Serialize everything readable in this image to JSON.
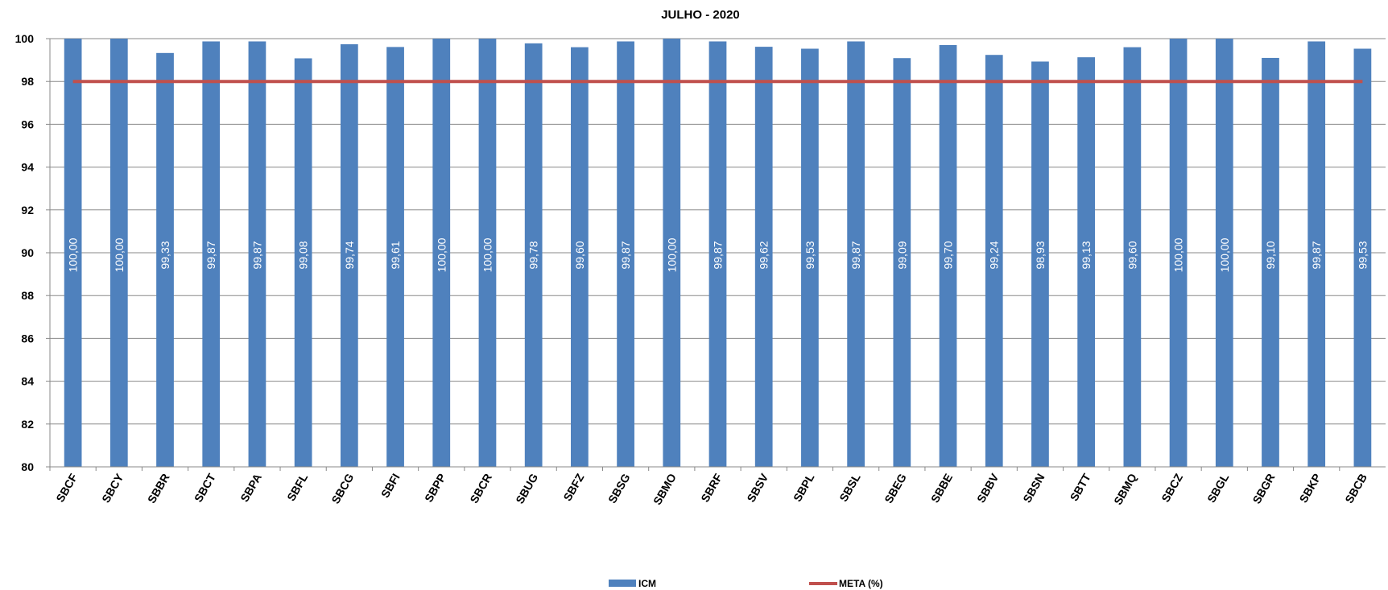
{
  "chart_data": {
    "type": "bar",
    "title": "JULHO - 2020",
    "xlabel": "",
    "ylabel": "",
    "ylim": [
      80,
      100
    ],
    "yticks": [
      80,
      82,
      84,
      86,
      88,
      90,
      92,
      94,
      96,
      98,
      100
    ],
    "grid": true,
    "legend_position": "bottom",
    "categories": [
      "SBCF",
      "SBCY",
      "SBBR",
      "SBCT",
      "SBPA",
      "SBFL",
      "SBCG",
      "SBFI",
      "SBPP",
      "SBCR",
      "SBUG",
      "SBFZ",
      "SBSG",
      "SBMO",
      "SBRF",
      "SBSV",
      "SBPL",
      "SBSL",
      "SBEG",
      "SBBE",
      "SBBV",
      "SBSN",
      "SBTT",
      "SBMQ",
      "SBCZ",
      "SBGL",
      "SBGR",
      "SBKP",
      "SBCB"
    ],
    "series": [
      {
        "name": "ICM",
        "type": "bar",
        "color": "#4F81BD",
        "values": [
          100.0,
          100.0,
          99.33,
          99.87,
          99.87,
          99.08,
          99.74,
          99.61,
          100.0,
          100.0,
          99.78,
          99.6,
          99.87,
          100.0,
          99.87,
          99.62,
          99.53,
          99.87,
          99.09,
          99.7,
          99.24,
          98.93,
          99.13,
          99.6,
          100.0,
          100.0,
          99.1,
          99.87,
          99.53
        ],
        "labels": [
          "100,00",
          "100,00",
          "99,33",
          "99,87",
          "99,87",
          "99,08",
          "99,74",
          "99,61",
          "100,00",
          "100,00",
          "99,78",
          "99,60",
          "99,87",
          "100,00",
          "99,87",
          "99,62",
          "99,53",
          "99,87",
          "99,09",
          "99,70",
          "99,24",
          "98,93",
          "99,13",
          "99,60",
          "100,00",
          "100,00",
          "99,10",
          "99,87",
          "99,53"
        ]
      },
      {
        "name": "META (%)",
        "type": "line",
        "color": "#C0504D",
        "values": [
          98,
          98,
          98,
          98,
          98,
          98,
          98,
          98,
          98,
          98,
          98,
          98,
          98,
          98,
          98,
          98,
          98,
          98,
          98,
          98,
          98,
          98,
          98,
          98,
          98,
          98,
          98,
          98,
          98
        ]
      }
    ]
  }
}
